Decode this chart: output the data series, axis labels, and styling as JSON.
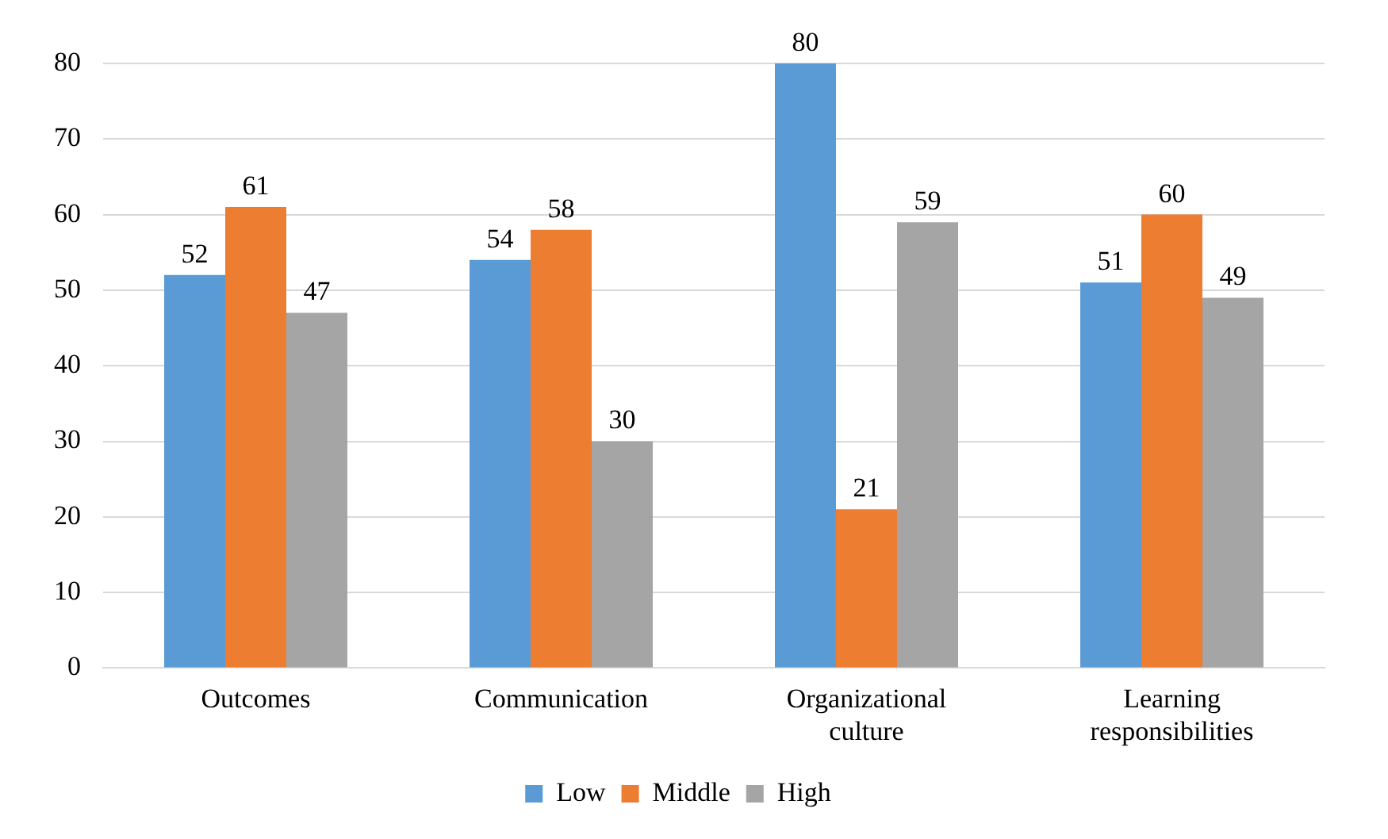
{
  "chart_data": {
    "type": "bar",
    "categories": [
      "Outcomes",
      "Communication",
      "Organizational culture",
      "Learning responsibilities"
    ],
    "series": [
      {
        "name": "Low",
        "color": "#5b9bd5",
        "values": [
          52,
          54,
          80,
          51
        ]
      },
      {
        "name": "Middle",
        "color": "#ed7d31",
        "values": [
          61,
          58,
          21,
          60
        ]
      },
      {
        "name": "High",
        "color": "#a5a5a5",
        "values": [
          47,
          30,
          59,
          49
        ]
      }
    ],
    "ylim": [
      0,
      80
    ],
    "yticks": [
      0,
      10,
      20,
      30,
      40,
      50,
      60,
      70,
      80
    ],
    "grid": "y",
    "legend": "bottom",
    "data_labels": true
  }
}
